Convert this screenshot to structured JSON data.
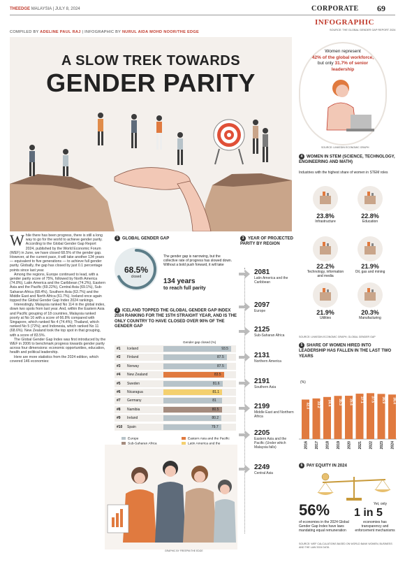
{
  "masthead": {
    "brand": "THEEDGE",
    "country": "MALAYSIA",
    "date": "JULY 8, 2024",
    "section": "CORPORATE",
    "page": "69",
    "type": "INFOGRAPHIC",
    "source": "SOURCE: THE GLOBAL GENDER GAP REPORT 2024"
  },
  "credits": {
    "compiled_label": "COMPILED BY",
    "compiled_name": "ADELINE PAUL RAJ",
    "infographic_label": "| INFOGRAPHIC BY",
    "infographic_name": "NURUL AIDA MOHD NOOR/THE EDGE"
  },
  "title": {
    "line1": "A SLOW TREK TOWARDS",
    "line2": "GENDER PARITY"
  },
  "bubble": {
    "line1": "Women represent",
    "line2": "42% of the global workforce,",
    "line3a": "but only",
    "line3b": "31.7% of senior",
    "line4": "leadership",
    "source": "SOURCE: LINKEDIN ECONOMIC GRAPH"
  },
  "article": {
    "dropcap": "W",
    "p1": "hile there has been progress, there is still a long way to go for the world to achieve gender parity. According to the Global Gender Gap Report 2024, published by the World Economic Forum (WEF) in June, we have closed 68.5% of the gender gap. However, at the current pace, it will take another 134 years — equivalent to five generations — to achieve full gender parity. Globally, the gap has closed by just 0.1 percentage points since last year.",
    "p2": "Among the regions, Europe continued to lead, with a gender parity score of 75%, followed by North America (74.8%), Latin America and the Caribbean (74.2%), Eastern Asia and the Pacific (69.22%), Central Asia (69.1%), Sub-Saharan Africa (68.4%), Southern Asia (63.7%) and the Middle East and North Africa (61.7%). Iceland once again topped the Global Gender Gap Index 2024 rankings.",
    "p3": "Interestingly, Malaysia ranked No 114 in the global index, down two spots from last year. And, within the Eastern Asia and Pacific grouping of 18 countries, Malaysia ranked poorly at No 16 with a score of 66.8% compared with Singapore, which ranked No 4 (74.4%); Thailand, which ranked No 5 (72%); and Indonesia, which ranked No 11 (68.6%). New Zealand took the top spot in that grouping, with a score of 83.5%.",
    "p4": "The Global Gender Gap Index was first introduced by the WEF in 2006 to benchmark progress towards gender parity across four dimensions: economic opportunities, education, health and political leadership.",
    "p5": "Here are more statistics from the 2024 edition, which covered 146 economies:"
  },
  "section1": {
    "num": "1",
    "title": "GLOBAL GENDER GAP",
    "value": "68.5%",
    "label": "closed",
    "text": "The gender gap is narrowing, but the collective rate of progress has slowed down. Without a bold push forward, it will take",
    "years": "134 years",
    "years_label": "to reach full parity"
  },
  "section2": {
    "num": "2",
    "title": "ICELAND TOPPED THE GLOBAL GENDER GAP INDEX 2024 RANKING FOR THE 15TH STRAIGHT YEAR, AND IS THE ONLY COUNTRY TO HAVE CLOSED OVER 90% OF THE GENDER GAP",
    "axis_label": "Gender gap closed (%)",
    "legend": [
      {
        "name": "Europe",
        "color": "#b7c3c9"
      },
      {
        "name": "Eastern Asia and the Pacific",
        "color": "#e07a3f"
      },
      {
        "name": "Sub-Saharan Africa",
        "color": "#a48b7e"
      },
      {
        "name": "Latin America and the Caribbean",
        "color": "#f4d06f"
      }
    ],
    "rows": [
      {
        "rank": "#1",
        "country": "Iceland",
        "value": "93.5",
        "v": 93.5,
        "color": "#b7c3c9"
      },
      {
        "rank": "#2",
        "country": "Finland",
        "value": "87.5",
        "v": 87.5,
        "color": "#b7c3c9"
      },
      {
        "rank": "#3",
        "country": "Norway",
        "value": "87.5",
        "v": 87.5,
        "color": "#b7c3c9"
      },
      {
        "rank": "#4",
        "country": "New Zealand",
        "value": "83.5",
        "v": 83.5,
        "color": "#e07a3f"
      },
      {
        "rank": "#5",
        "country": "Sweden",
        "value": "81.6",
        "v": 81.6,
        "color": "#b7c3c9"
      },
      {
        "rank": "#6",
        "country": "Nicaragua",
        "value": "81.1",
        "v": 81.1,
        "color": "#f4d06f"
      },
      {
        "rank": "#7",
        "country": "Germany",
        "value": "81",
        "v": 81,
        "color": "#b7c3c9"
      },
      {
        "rank": "#8",
        "country": "Namibia",
        "value": "80.5",
        "v": 80.5,
        "color": "#a48b7e"
      },
      {
        "rank": "#9",
        "country": "Ireland",
        "value": "80.2",
        "v": 80.2,
        "color": "#b7c3c9"
      },
      {
        "rank": "#10",
        "country": "Spain",
        "value": "79.7",
        "v": 79.7,
        "color": "#b7c3c9"
      }
    ]
  },
  "section3": {
    "num": "3",
    "title": "YEAR OF PROJECTED PARITY BY REGION",
    "items": [
      {
        "year": "2081",
        "region": "Latin America and the Caribbean"
      },
      {
        "year": "2097",
        "region": "Europe"
      },
      {
        "year": "2125",
        "region": "Sub-Saharan Africa"
      },
      {
        "year": "2131",
        "region": "Northern America"
      },
      {
        "year": "2191",
        "region": "Southern Asia"
      },
      {
        "year": "2199",
        "region": "Middle East and Northern Africa"
      },
      {
        "year": "2205",
        "region": "Eastern Asia and the Pacific (Under which Malaysia falls)"
      },
      {
        "year": "2249",
        "region": "Central Asia"
      }
    ]
  },
  "section4": {
    "num": "4",
    "title": "WOMEN IN STEM (SCIENCE, TECHNOLOGY, ENGINEERING AND MATH)",
    "subtitle": "Industries with the highest share of women in STEM roles",
    "items": [
      {
        "pct": "23.8",
        "label": "Infrastructure",
        "icon": "factory-icon"
      },
      {
        "pct": "22.8",
        "label": "Education",
        "icon": "graduation-cap-icon"
      },
      {
        "pct": "22.2",
        "label": "Technology, information and media",
        "icon": "cloud-network-icon"
      },
      {
        "pct": "21.9",
        "label": "Oil, gas and mining",
        "icon": "oil-rig-icon"
      },
      {
        "pct": "21.9",
        "label": "Utilities",
        "icon": "power-tower-icon"
      },
      {
        "pct": "20.3",
        "label": "Manufacturing",
        "icon": "gears-icon"
      }
    ],
    "pct_unit": "%",
    "source": "SOURCE: LINKEDIN ECONOMIC GRAPH, GLOBAL GENDER GAP"
  },
  "section5": {
    "num": "5",
    "title": "SHARE OF WOMEN HIRED INTO LEADERSHIP HAS FALLEN IN THE LAST TWO YEARS",
    "unit": "(%)"
  },
  "chart_data": {
    "type": "bar",
    "categories": [
      "2016",
      "2017",
      "2018",
      "2019",
      "2020",
      "2021",
      "2022",
      "2023",
      "2024"
    ],
    "values": [
      32.3,
      33.2,
      34.4,
      35.3,
      35.4,
      37.1,
      37.5,
      36.9,
      36.4
    ],
    "value_labels": [
      "32.3",
      "33.2",
      "34.4",
      "35.3",
      "35.4",
      "37.1",
      "37.5",
      "36.9",
      "36.4"
    ],
    "bar_color": "#e07a3f",
    "ylim": [
      0,
      40
    ]
  },
  "section6": {
    "num": "6",
    "title": "PAY EQUITY IN 2024",
    "big1": "56%",
    "text1": "of economies in the 2024 Global Gender Gap Index have laws mandating equal remuneration",
    "yet": "Yet, only",
    "big2": "1 in 5",
    "text2": "economies has transparency and enforcement mechanisms",
    "source": "SOURCE: WEF CALCULATIONS BASED ON WORLD BANK WOMEN, BUSINESS AND THE LAW 2024 DATA"
  },
  "illustration_caption": "GRAPHIC BY FREEPIK/THE EDGE"
}
